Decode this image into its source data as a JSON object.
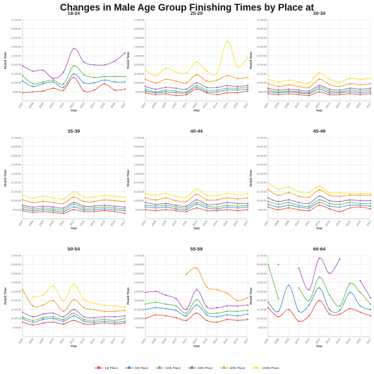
{
  "title": "Changes in Male Age Group Finishing Times by Place at",
  "legend": [
    {
      "name": "1st Place",
      "color": "#e8543e"
    },
    {
      "name": "5th Place",
      "color": "#4a8fd6"
    },
    {
      "name": "10th Place",
      "color": "#5fbf4c"
    },
    {
      "name": "20th Place",
      "color": "#a35bc4"
    },
    {
      "name": "50th Place",
      "color": "#f59a1f"
    },
    {
      "name": "100th Place",
      "color": "#f5e33c"
    }
  ],
  "chart_data": [
    {
      "type": "line",
      "title": "18-24",
      "xlabel": "Year",
      "ylabel": "Finish Time",
      "categories": [
        "2007",
        "2008",
        "2009",
        "2010",
        "2011",
        "2012",
        "2013",
        "2014",
        "2015",
        "2016",
        "2017"
      ],
      "yticks": [
        "9:00:00",
        "10:00:00",
        "11:00:00",
        "12:00:00",
        "13:00:00",
        "14:00:00",
        "15:00:00",
        "16:00:00",
        "17:00:00"
      ],
      "ylim": [
        8,
        17
      ],
      "series": [
        {
          "name": "1st Place",
          "values": [
            8.9,
            9.0,
            9.1,
            9.4,
            9.2,
            10.6,
            9.1,
            9.2,
            9.9,
            9.2,
            9.3
          ]
        },
        {
          "name": "5th Place",
          "values": [
            10.2,
            9.6,
            9.9,
            10.1,
            9.5,
            11.0,
            10.0,
            10.0,
            10.3,
            10.1,
            10.1
          ]
        },
        {
          "name": "10th Place",
          "values": [
            10.8,
            9.9,
            10.1,
            10.3,
            9.9,
            11.9,
            10.9,
            10.6,
            10.7,
            10.7,
            10.7
          ]
        },
        {
          "name": "20th Place",
          "values": [
            11.9,
            11.3,
            11.4,
            10.5,
            11.2,
            13.8,
            12.3,
            12.0,
            12.0,
            12.4,
            13.3
          ]
        }
      ]
    },
    {
      "type": "line",
      "title": "25-29",
      "xlabel": "Year",
      "ylabel": "Finish Time",
      "categories": [
        "2007",
        "2008",
        "2009",
        "2010",
        "2011",
        "2012",
        "2013",
        "2014",
        "2015",
        "2016",
        "2017"
      ],
      "yticks": [
        "9:00:00",
        "10:00:00",
        "11:00:00",
        "12:00:00",
        "13:00:00",
        "14:00:00",
        "15:00:00",
        "16:00:00",
        "17:00:00"
      ],
      "ylim": [
        8,
        17
      ],
      "series": [
        {
          "name": "1st Place",
          "values": [
            8.9,
            8.7,
            8.8,
            8.6,
            8.7,
            9.3,
            8.9,
            8.7,
            8.9,
            8.9,
            9.1
          ]
        },
        {
          "name": "5th Place",
          "values": [
            9.1,
            8.9,
            9.0,
            8.9,
            8.9,
            9.5,
            9.0,
            9.0,
            9.2,
            9.2,
            9.3
          ]
        },
        {
          "name": "10th Place",
          "values": [
            9.3,
            9.0,
            9.2,
            9.1,
            9.0,
            9.7,
            9.2,
            9.2,
            9.4,
            9.4,
            9.5
          ]
        },
        {
          "name": "20th Place",
          "values": [
            9.6,
            9.3,
            9.5,
            9.4,
            9.3,
            10.0,
            9.5,
            9.5,
            9.7,
            9.6,
            9.7
          ]
        },
        {
          "name": "50th Place",
          "values": [
            10.4,
            10.0,
            10.4,
            10.2,
            10.0,
            10.9,
            10.2,
            10.3,
            10.8,
            10.5,
            10.6
          ]
        },
        {
          "name": "100th Place",
          "values": [
            11.4,
            10.8,
            11.6,
            11.2,
            11.1,
            12.3,
            11.3,
            11.1,
            14.6,
            11.8,
            12.8
          ]
        }
      ]
    },
    {
      "type": "line",
      "title": "30-34",
      "xlabel": "Year",
      "ylabel": "Finish Time",
      "categories": [
        "2007",
        "2008",
        "2009",
        "2010",
        "2011",
        "2012",
        "2013",
        "2014",
        "2015",
        "2016",
        "2017"
      ],
      "yticks": [
        "9:00:00",
        "10:00:00",
        "11:00:00",
        "12:00:00",
        "13:00:00",
        "14:00:00",
        "15:00:00",
        "16:00:00",
        "17:00:00"
      ],
      "ylim": [
        8,
        17
      ],
      "series": [
        {
          "name": "1st Place",
          "values": [
            8.8,
            8.7,
            8.8,
            8.7,
            8.6,
            9.0,
            8.7,
            8.7,
            8.8,
            8.7,
            8.8
          ]
        },
        {
          "name": "5th Place",
          "values": [
            9.0,
            8.9,
            9.0,
            8.9,
            8.8,
            9.3,
            8.9,
            8.9,
            9.0,
            8.9,
            9.0
          ]
        },
        {
          "name": "10th Place",
          "values": [
            9.2,
            9.0,
            9.1,
            9.0,
            8.9,
            9.5,
            9.1,
            9.0,
            9.2,
            9.1,
            9.2
          ]
        },
        {
          "name": "20th Place",
          "values": [
            9.4,
            9.2,
            9.3,
            9.2,
            9.1,
            9.7,
            9.3,
            9.2,
            9.4,
            9.3,
            9.4
          ]
        },
        {
          "name": "50th Place",
          "values": [
            9.9,
            9.6,
            9.8,
            9.6,
            9.5,
            10.4,
            9.8,
            9.6,
            9.9,
            9.8,
            9.9
          ]
        },
        {
          "name": "100th Place",
          "values": [
            10.4,
            10.1,
            10.3,
            10.1,
            10.0,
            11.1,
            10.4,
            10.1,
            10.5,
            10.4,
            10.5
          ]
        }
      ]
    },
    {
      "type": "line",
      "title": "35-39",
      "xlabel": "Year",
      "ylabel": "Finish Time",
      "categories": [
        "2007",
        "2008",
        "2009",
        "2010",
        "2011",
        "2012",
        "2013",
        "2014",
        "2015",
        "2016",
        "2017"
      ],
      "yticks": [
        "9:00:00",
        "10:00:00",
        "11:00:00",
        "12:00:00",
        "13:00:00",
        "14:00:00",
        "15:00:00",
        "16:00:00",
        "17:00:00"
      ],
      "ylim": [
        8,
        17
      ],
      "series": [
        {
          "name": "1st Place",
          "values": [
            8.9,
            8.7,
            8.8,
            8.7,
            8.6,
            9.0,
            8.8,
            8.8,
            8.9,
            8.8,
            8.6
          ]
        },
        {
          "name": "5th Place",
          "values": [
            9.1,
            8.9,
            9.0,
            8.9,
            8.8,
            9.3,
            9.0,
            9.0,
            9.1,
            9.0,
            8.9
          ]
        },
        {
          "name": "10th Place",
          "values": [
            9.3,
            9.1,
            9.2,
            9.1,
            9.0,
            9.6,
            9.2,
            9.2,
            9.3,
            9.2,
            9.1
          ]
        },
        {
          "name": "20th Place",
          "values": [
            9.5,
            9.3,
            9.4,
            9.3,
            9.2,
            9.8,
            9.4,
            9.4,
            9.5,
            9.4,
            9.3
          ]
        },
        {
          "name": "50th Place",
          "values": [
            10.1,
            9.8,
            9.9,
            9.8,
            9.7,
            10.4,
            9.9,
            9.9,
            10.1,
            10.0,
            9.9
          ]
        },
        {
          "name": "100th Place",
          "values": [
            10.6,
            10.3,
            10.5,
            10.3,
            10.2,
            11.0,
            10.4,
            10.4,
            10.6,
            10.5,
            10.4
          ]
        }
      ]
    },
    {
      "type": "line",
      "title": "40-44",
      "xlabel": "Year",
      "ylabel": "Finish Time",
      "categories": [
        "2007",
        "2008",
        "2009",
        "2010",
        "2011",
        "2012",
        "2013",
        "2014",
        "2015",
        "2016",
        "2017"
      ],
      "yticks": [
        "9:00:00",
        "10:00:00",
        "11:00:00",
        "12:00:00",
        "13:00:00",
        "14:00:00",
        "15:00:00",
        "16:00:00",
        "17:00:00"
      ],
      "ylim": [
        8,
        17
      ],
      "series": [
        {
          "name": "1st Place",
          "values": [
            9.0,
            8.9,
            9.0,
            8.9,
            8.8,
            9.2,
            8.9,
            8.9,
            9.0,
            8.9,
            9.0
          ]
        },
        {
          "name": "5th Place",
          "values": [
            9.3,
            9.2,
            9.3,
            9.1,
            9.0,
            9.6,
            9.2,
            9.1,
            9.3,
            9.2,
            9.3
          ]
        },
        {
          "name": "10th Place",
          "values": [
            9.5,
            9.4,
            9.5,
            9.3,
            9.2,
            9.8,
            9.4,
            9.3,
            9.5,
            9.4,
            9.5
          ]
        },
        {
          "name": "20th Place",
          "values": [
            9.8,
            9.6,
            9.7,
            9.5,
            9.4,
            10.1,
            9.6,
            9.6,
            9.8,
            9.7,
            9.7
          ]
        },
        {
          "name": "50th Place",
          "values": [
            10.3,
            10.1,
            10.3,
            10.0,
            9.9,
            10.7,
            10.1,
            10.1,
            10.3,
            10.2,
            10.3
          ]
        },
        {
          "name": "100th Place",
          "values": [
            10.8,
            10.6,
            10.8,
            10.5,
            10.4,
            11.3,
            10.6,
            10.6,
            10.8,
            10.7,
            10.8
          ]
        }
      ]
    },
    {
      "type": "line",
      "title": "45-49",
      "xlabel": "Year",
      "ylabel": "Finish Time",
      "categories": [
        "2007",
        "2008",
        "2009",
        "2010",
        "2011",
        "2012",
        "2013",
        "2014",
        "2015",
        "2016",
        "2017"
      ],
      "yticks": [
        "9:00:00",
        "10:00:00",
        "11:00:00",
        "12:00:00",
        "13:00:00",
        "14:00:00",
        "15:00:00",
        "16:00:00",
        "17:00:00"
      ],
      "ylim": [
        8,
        17
      ],
      "series": [
        {
          "name": "1st Place",
          "values": [
            9.3,
            9.0,
            9.2,
            9.0,
            8.9,
            9.5,
            9.1,
            8.8,
            9.2,
            9.3,
            9.1
          ]
        },
        {
          "name": "5th Place",
          "values": [
            9.6,
            9.3,
            9.5,
            9.3,
            9.2,
            9.8,
            9.4,
            9.3,
            9.5,
            9.5,
            9.4
          ]
        },
        {
          "name": "10th Place",
          "values": [
            9.9,
            9.6,
            9.8,
            9.5,
            9.4,
            10.1,
            9.7,
            9.6,
            9.8,
            9.7,
            9.7
          ]
        },
        {
          "name": "20th Place",
          "values": [
            10.3,
            9.9,
            10.1,
            9.8,
            9.7,
            10.5,
            10.0,
            9.9,
            10.1,
            10.0,
            10.0
          ]
        },
        {
          "name": "50th Place",
          "values": [
            11.2,
            10.6,
            10.9,
            10.5,
            10.4,
            11.2,
            10.6,
            10.5,
            10.6,
            10.6,
            10.6
          ]
        },
        {
          "name": "100th Place",
          "values": [
            12.0,
            11.3,
            11.5,
            11.0,
            10.9,
            11.6,
            10.9,
            10.9,
            10.8,
            10.8,
            10.8
          ]
        }
      ]
    },
    {
      "type": "line",
      "title": "50-54",
      "xlabel": "Year",
      "ylabel": "Finish Time",
      "categories": [
        "2007",
        "2008",
        "2009",
        "2010",
        "2011",
        "2012",
        "2013",
        "2014",
        "2015",
        "2016",
        "2017"
      ],
      "yticks": [
        "9:00:00",
        "10:00:00",
        "11:00:00",
        "12:00:00",
        "13:00:00",
        "14:00:00",
        "15:00:00",
        "16:00:00",
        "17:00:00"
      ],
      "ylim": [
        8,
        17
      ],
      "series": [
        {
          "name": "1st Place",
          "values": [
            9.6,
            9.3,
            9.5,
            9.6,
            9.4,
            9.8,
            9.4,
            9.4,
            9.5,
            9.4,
            9.5
          ]
        },
        {
          "name": "5th Place",
          "values": [
            10.0,
            9.6,
            9.9,
            10.0,
            9.7,
            10.3,
            9.7,
            9.6,
            9.7,
            9.6,
            9.7
          ]
        },
        {
          "name": "10th Place",
          "values": [
            10.2,
            9.8,
            10.1,
            10.2,
            9.9,
            10.6,
            9.9,
            9.8,
            9.9,
            9.8,
            10.0
          ]
        },
        {
          "name": "20th Place",
          "values": [
            10.7,
            10.2,
            10.5,
            10.6,
            10.2,
            11.0,
            10.2,
            10.1,
            10.2,
            10.2,
            10.3
          ]
        },
        {
          "name": "50th Place",
          "values": [
            13.2,
            11.4,
            11.5,
            12.0,
            10.8,
            12.1,
            11.2,
            11.0,
            10.8,
            10.8,
            10.9
          ]
        },
        {
          "name": "100th Place",
          "values": [
            null,
            12.4,
            12.6,
            13.6,
            12.0,
            13.8,
            12.1,
            11.7,
            11.5,
            11.4,
            11.3
          ]
        }
      ]
    },
    {
      "type": "line",
      "title": "55-59",
      "xlabel": "Year",
      "ylabel": "Finish Time",
      "categories": [
        "2007",
        "2008",
        "2009",
        "2010",
        "2011",
        "2012",
        "2013",
        "2014",
        "2015",
        "2016",
        "2017"
      ],
      "yticks": [
        "9:00:00",
        "10:00:00",
        "11:00:00",
        "12:00:00",
        "13:00:00",
        "14:00:00",
        "15:00:00",
        "16:00:00",
        "17:00:00"
      ],
      "ylim": [
        8,
        17
      ],
      "series": [
        {
          "name": "1st Place",
          "values": [
            10.0,
            10.4,
            10.3,
            10.1,
            9.8,
            10.6,
            9.8,
            9.6,
            9.9,
            9.8,
            9.9
          ]
        },
        {
          "name": "5th Place",
          "values": [
            11.0,
            11.2,
            11.1,
            10.9,
            10.3,
            11.5,
            10.4,
            10.2,
            10.4,
            10.3,
            10.5
          ]
        },
        {
          "name": "10th Place",
          "values": [
            11.6,
            11.8,
            11.6,
            11.4,
            10.6,
            12.1,
            10.7,
            10.6,
            10.8,
            10.8,
            10.9
          ]
        },
        {
          "name": "20th Place",
          "values": [
            12.9,
            13.0,
            12.6,
            12.2,
            11.0,
            13.2,
            11.3,
            11.2,
            11.4,
            11.4,
            11.5
          ]
        },
        {
          "name": "50th Place",
          "values": [
            null,
            null,
            null,
            null,
            14.9,
            15.6,
            13.5,
            13.2,
            12.8,
            12.0,
            12.3
          ]
        },
        {
          "name": "100th Place",
          "values": [
            null,
            null,
            null,
            null,
            null,
            null,
            null,
            null,
            null,
            null,
            14.0
          ]
        }
      ]
    },
    {
      "type": "line",
      "title": "60-64",
      "xlabel": "Year",
      "ylabel": "Finish Time",
      "categories": [
        "2007",
        "2008",
        "2009",
        "2010",
        "2011",
        "2012",
        "2013",
        "2014",
        "2015",
        "2016",
        "2017"
      ],
      "yticks": [
        "9:00:00",
        "10:00:00",
        "11:00:00",
        "12:00:00",
        "13:00:00",
        "14:00:00",
        "15:00:00",
        "16:00:00",
        "17:00:00"
      ],
      "ylim": [
        8,
        17
      ],
      "series": [
        {
          "name": "1st Place",
          "values": [
            11.2,
            10.2,
            11.0,
            9.7,
            10.3,
            12.0,
            10.5,
            10.5,
            11.1,
            10.7,
            10.3
          ]
        },
        {
          "name": "5th Place",
          "values": [
            11.8,
            10.8,
            13.7,
            10.8,
            11.5,
            13.4,
            11.0,
            10.9,
            12.9,
            11.4,
            11.0
          ]
        },
        {
          "name": "10th Place",
          "values": [
            16.0,
            12.2,
            null,
            13.4,
            12.0,
            14.6,
            12.6,
            11.4,
            13.9,
            12.9,
            11.6
          ]
        },
        {
          "name": "20th Place",
          "values": [
            null,
            16.0,
            null,
            15.6,
            13.2,
            16.7,
            15.0,
            16.6,
            null,
            14.2,
            12.3
          ]
        }
      ]
    }
  ]
}
